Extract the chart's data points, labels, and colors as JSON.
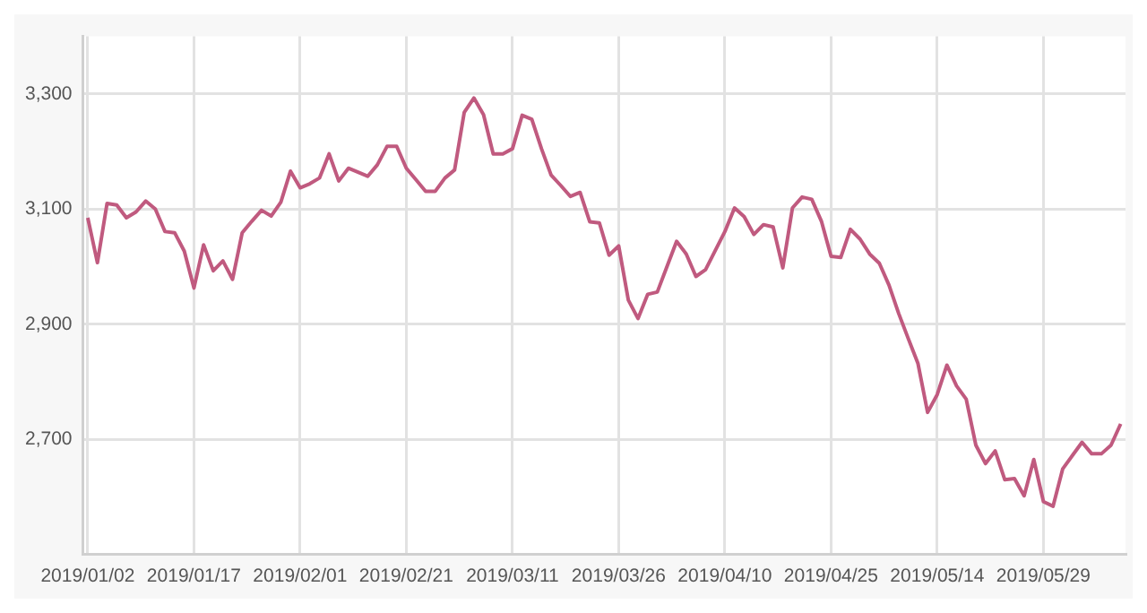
{
  "chart_data": {
    "type": "line",
    "categories": [
      "2019/01/02",
      null,
      null,
      null,
      null,
      null,
      null,
      null,
      null,
      null,
      null,
      "2019/01/17",
      null,
      null,
      null,
      null,
      null,
      null,
      null,
      null,
      null,
      null,
      "2019/02/01",
      null,
      null,
      null,
      null,
      null,
      null,
      null,
      null,
      null,
      null,
      "2019/02/21",
      null,
      null,
      null,
      null,
      null,
      null,
      null,
      null,
      null,
      null,
      "2019/03/11",
      null,
      null,
      null,
      null,
      null,
      null,
      null,
      null,
      null,
      null,
      "2019/03/26",
      null,
      null,
      null,
      null,
      null,
      null,
      null,
      null,
      null,
      null,
      "2019/04/10",
      null,
      null,
      null,
      null,
      null,
      null,
      null,
      null,
      null,
      null,
      "2019/04/25",
      null,
      null,
      null,
      null,
      null,
      null,
      null,
      null,
      null,
      null,
      "2019/05/14",
      null,
      null,
      null,
      null,
      null,
      null,
      null,
      null,
      null,
      null,
      "2019/05/29",
      null,
      null,
      null,
      null,
      null,
      null,
      null,
      null
    ],
    "series": [
      {
        "color": "#c05a7f",
        "values": [
          3085,
          3007,
          3110,
          3107,
          3085,
          3095,
          3114,
          3100,
          3061,
          3059,
          3027,
          2963,
          3038,
          2993,
          3010,
          2978,
          3059,
          3079,
          3098,
          3088,
          3112,
          3166,
          3137,
          3144,
          3154,
          3196,
          3149,
          3171,
          3164,
          3157,
          3177,
          3209,
          3209,
          3171,
          3151,
          3131,
          3131,
          3154,
          3168,
          3268,
          3293,
          3264,
          3196,
          3196,
          3205,
          3263,
          3256,
          3205,
          3159,
          3141,
          3122,
          3129,
          3078,
          3076,
          3020,
          3036,
          2942,
          2910,
          2952,
          2956,
          3000,
          3044,
          3022,
          2983,
          2995,
          3028,
          3061,
          3102,
          3087,
          3056,
          3073,
          3069,
          2998,
          3102,
          3121,
          3117,
          3079,
          3018,
          3016,
          3065,
          3048,
          3022,
          3006,
          2968,
          2919,
          2875,
          2832,
          2747,
          2778,
          2829,
          2793,
          2770,
          2690,
          2658,
          2680,
          2630,
          2632,
          2602,
          2665,
          2592,
          2584,
          2649,
          2672,
          2695,
          2675,
          2675,
          2690,
          2727
        ]
      }
    ],
    "ylim": [
      2500,
      3400
    ],
    "yticks": [
      {
        "value": 2700,
        "label": "2,700"
      },
      {
        "value": 2900,
        "label": "2,900"
      },
      {
        "value": 3100,
        "label": "3,100"
      },
      {
        "value": 3300,
        "label": "3,300"
      }
    ],
    "grid": true,
    "legend": false,
    "marker": "none",
    "line_style": "solid"
  }
}
